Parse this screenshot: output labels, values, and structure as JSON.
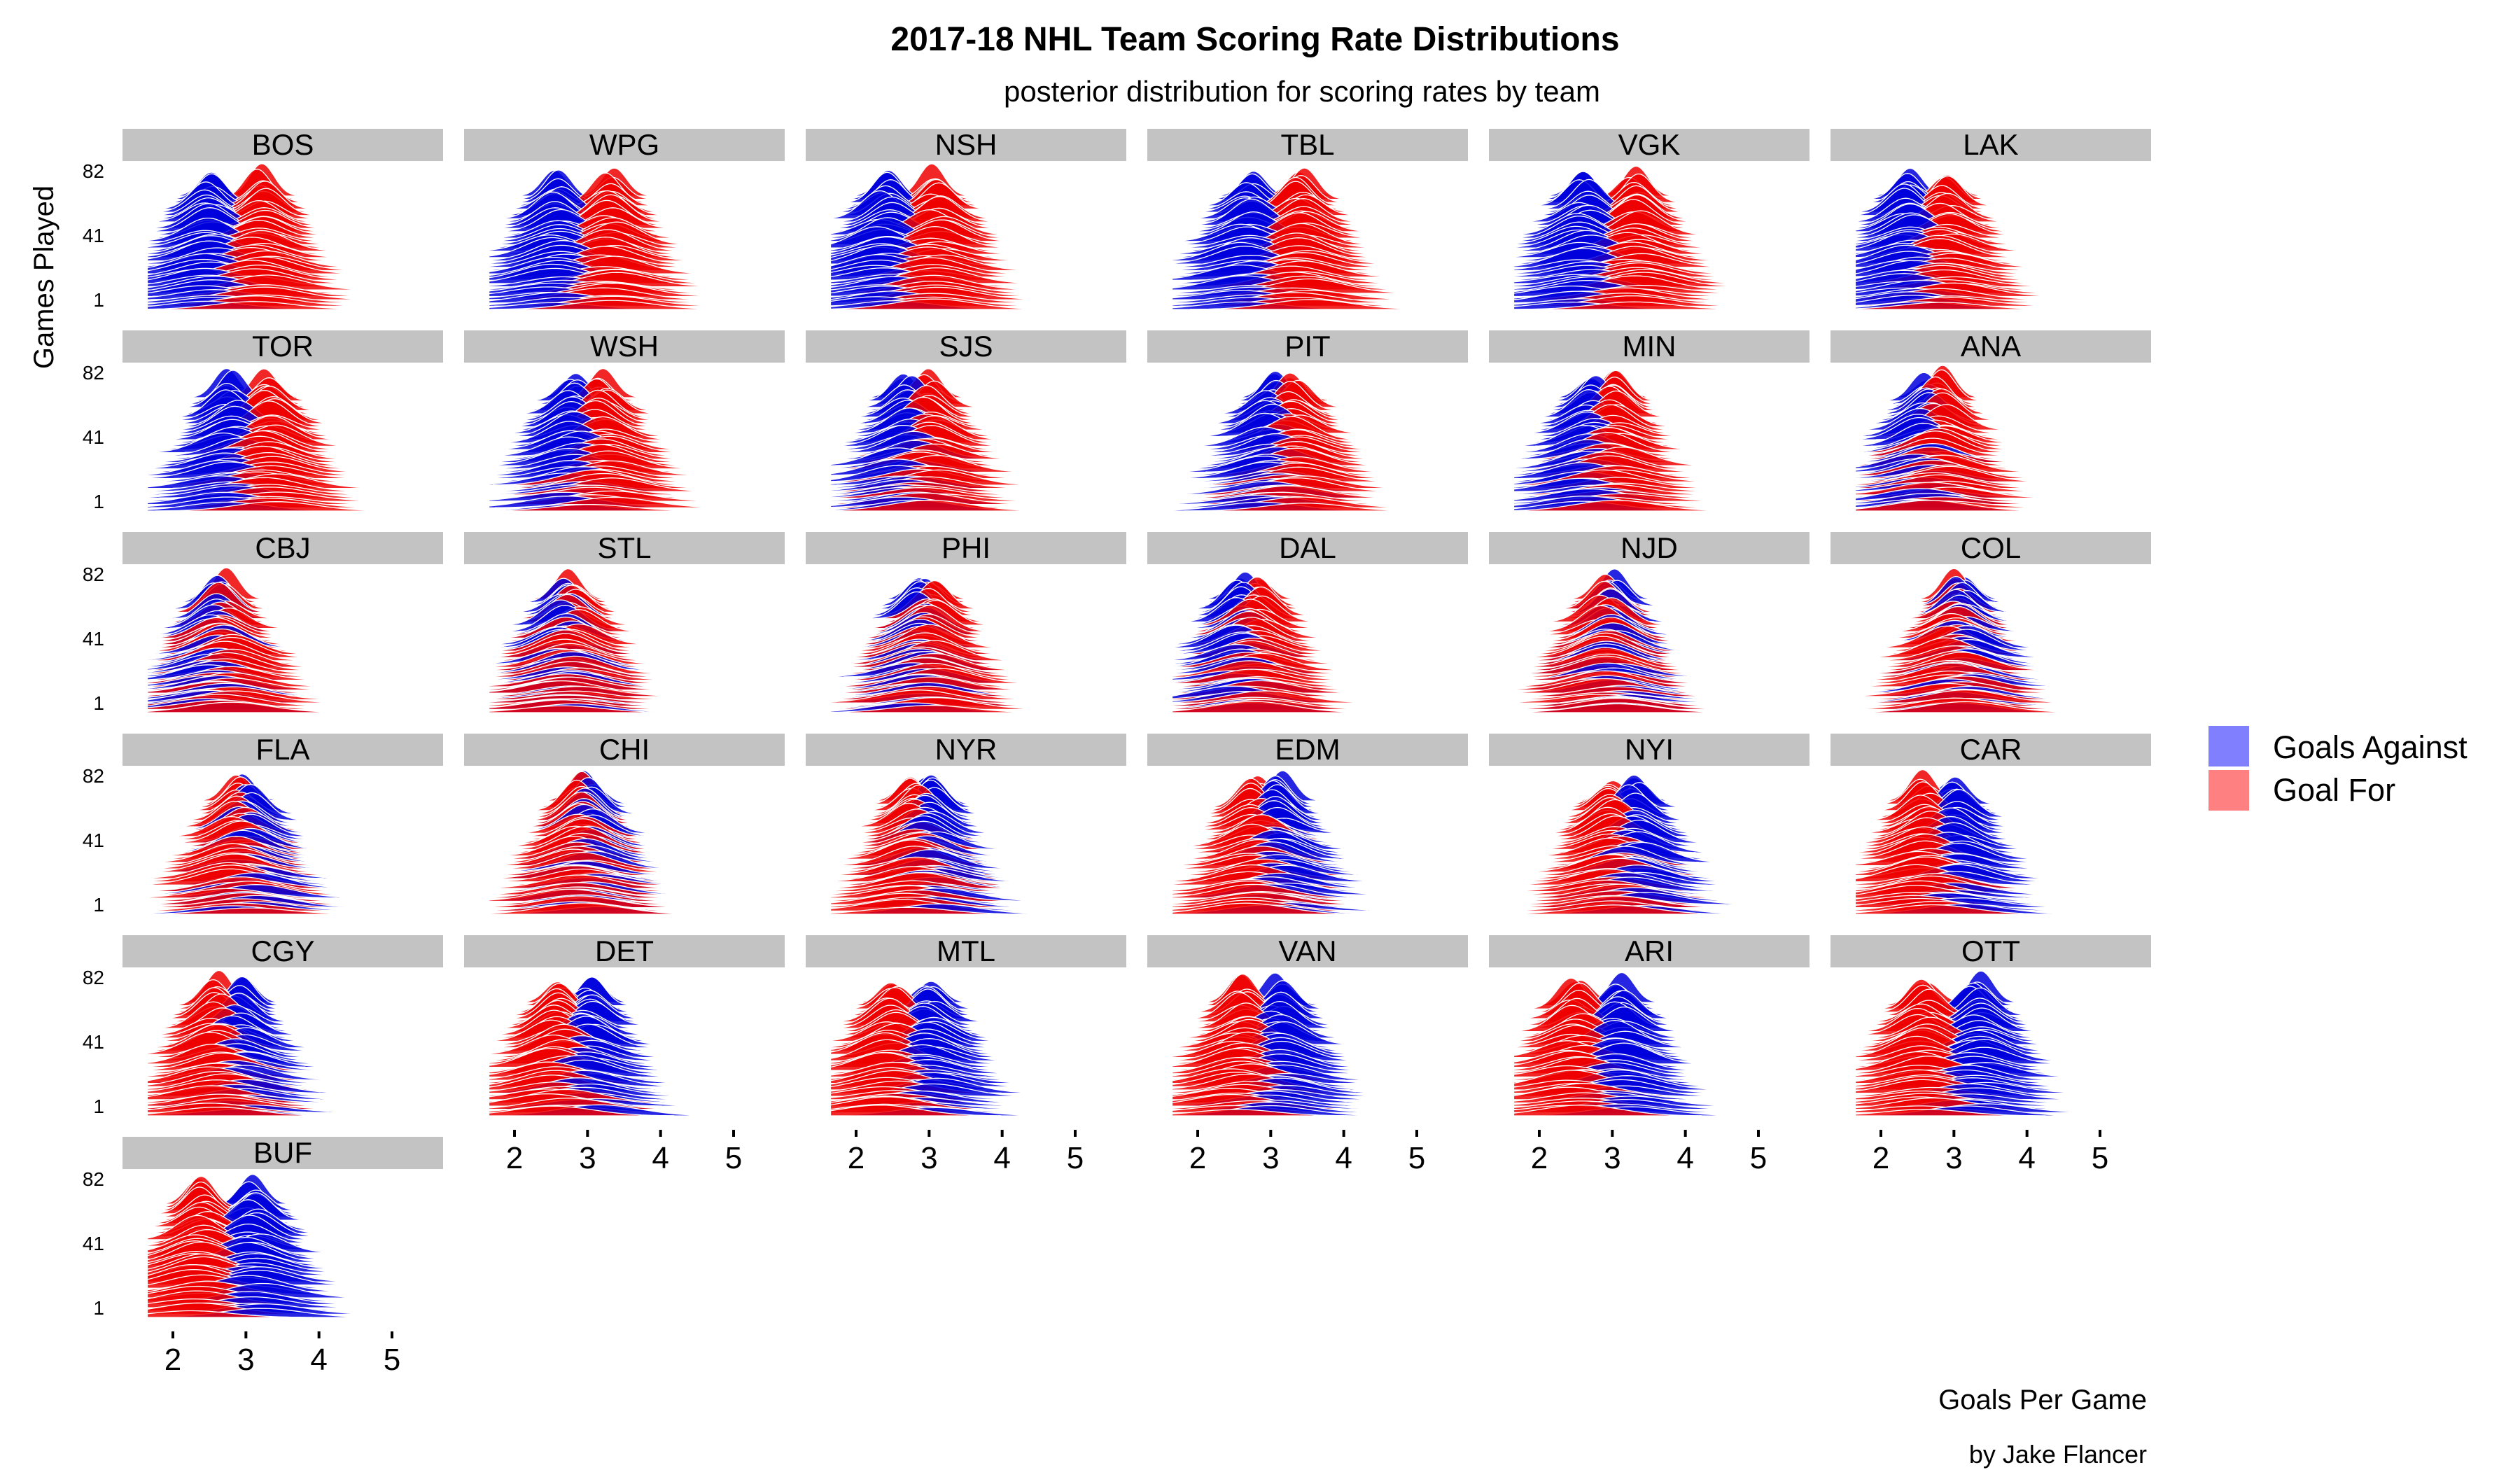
{
  "chart_data": {
    "type": "ridgeline",
    "title": "2017-18 NHL Team Scoring Rate Distributions",
    "subtitle": "posterior distribution for scoring rates by team",
    "xlabel": "Goals Per Game",
    "ylabel": "Games Played",
    "caption": "by Jake Flancer",
    "x_ticks": [
      "2",
      "3",
      "4",
      "5"
    ],
    "y_ticks": [
      "1",
      "41",
      "82"
    ],
    "xlim": [
      1.5,
      5.2
    ],
    "ylim": [
      1,
      82
    ],
    "legend_position": "right",
    "series": [
      {
        "name": "Goals Against",
        "color": "#8080ff",
        "line_color": "#0000dd"
      },
      {
        "name": "Goal For",
        "color": "#ff8080",
        "line_color": "#ee0000"
      }
    ],
    "teams": [
      {
        "team": "BOS",
        "goals_for": 3.2,
        "goals_against": 2.5
      },
      {
        "team": "WPG",
        "goals_for": 3.3,
        "goals_against": 2.6
      },
      {
        "team": "NSH",
        "goals_for": 3.1,
        "goals_against": 2.4
      },
      {
        "team": "TBL",
        "goals_for": 3.4,
        "goals_against": 2.7
      },
      {
        "team": "VGK",
        "goals_for": 3.3,
        "goals_against": 2.6
      },
      {
        "team": "LAK",
        "goals_for": 2.9,
        "goals_against": 2.4
      },
      {
        "team": "TOR",
        "goals_for": 3.3,
        "goals_against": 2.8
      },
      {
        "team": "WSH",
        "goals_for": 3.2,
        "goals_against": 2.8
      },
      {
        "team": "SJS",
        "goals_for": 3.0,
        "goals_against": 2.7
      },
      {
        "team": "PIT",
        "goals_for": 3.3,
        "goals_against": 3.0
      },
      {
        "team": "MIN",
        "goals_for": 3.0,
        "goals_against": 2.7
      },
      {
        "team": "ANA",
        "goals_for": 2.8,
        "goals_against": 2.6
      },
      {
        "team": "CBJ",
        "goals_for": 2.7,
        "goals_against": 2.6
      },
      {
        "team": "STL",
        "goals_for": 2.8,
        "goals_against": 2.7
      },
      {
        "team": "PHI",
        "goals_for": 3.0,
        "goals_against": 2.9
      },
      {
        "team": "DAL",
        "goals_for": 2.8,
        "goals_against": 2.6
      },
      {
        "team": "NJD",
        "goals_for": 2.9,
        "goals_against": 3.0
      },
      {
        "team": "COL",
        "goals_for": 3.0,
        "goals_against": 3.1
      },
      {
        "team": "FLA",
        "goals_for": 2.9,
        "goals_against": 3.0
      },
      {
        "team": "CHI",
        "goals_for": 2.9,
        "goals_against": 3.0
      },
      {
        "team": "NYR",
        "goals_for": 2.8,
        "goals_against": 3.0
      },
      {
        "team": "EDM",
        "goals_for": 2.8,
        "goals_against": 3.1
      },
      {
        "team": "NYI",
        "goals_for": 3.0,
        "goals_against": 3.3
      },
      {
        "team": "CAR",
        "goals_for": 2.6,
        "goals_against": 3.0
      },
      {
        "team": "CGY",
        "goals_for": 2.6,
        "goals_against": 2.9
      },
      {
        "team": "DET",
        "goals_for": 2.6,
        "goals_against": 3.0
      },
      {
        "team": "MTL",
        "goals_for": 2.5,
        "goals_against": 3.0
      },
      {
        "team": "VAN",
        "goals_for": 2.6,
        "goals_against": 3.1
      },
      {
        "team": "ARI",
        "goals_for": 2.5,
        "goals_against": 3.1
      },
      {
        "team": "OTT",
        "goals_for": 2.6,
        "goals_against": 3.3
      },
      {
        "team": "BUF",
        "goals_for": 2.4,
        "goals_against": 3.1
      }
    ]
  }
}
